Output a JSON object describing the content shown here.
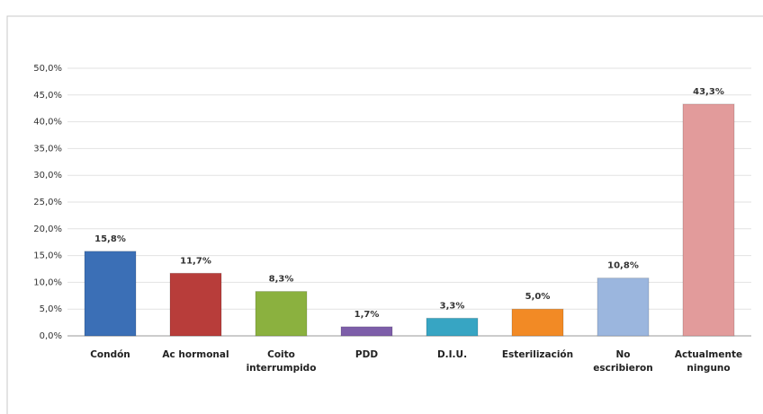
{
  "chart_data": {
    "type": "bar",
    "categories": [
      "Condón",
      "Ac hormonal",
      "Coito interrumpido",
      "PDD",
      "D.I.U.",
      "Esterilización",
      "No escribieron",
      "Actualmente ninguno"
    ],
    "values": [
      15.8,
      11.7,
      8.3,
      1.7,
      3.3,
      5.0,
      10.8,
      43.3
    ],
    "value_labels": [
      "15,8%",
      "11,7%",
      "8,3%",
      "1,7%",
      "3,3%",
      "5,0%",
      "10,8%",
      "43,3%"
    ],
    "colors": [
      "#3b6fb6",
      "#b83d3a",
      "#8bb13f",
      "#7d5ea9",
      "#37a5c3",
      "#f28a25",
      "#9bb6de",
      "#e29b9b"
    ],
    "ylim": [
      0,
      50
    ],
    "yticks": [
      {
        "value": 0,
        "label": "0,0%"
      },
      {
        "value": 5,
        "label": "5,0%"
      },
      {
        "value": 10,
        "label": "10,0%"
      },
      {
        "value": 15,
        "label": "15,0%"
      },
      {
        "value": 20,
        "label": "20,0%"
      },
      {
        "value": 25,
        "label": "25,0%"
      },
      {
        "value": 30,
        "label": "30,0%"
      },
      {
        "value": 35,
        "label": "35,0%"
      },
      {
        "value": 40,
        "label": "40,0%"
      },
      {
        "value": 45,
        "label": "45,0%"
      },
      {
        "value": 50,
        "label": "50,0%"
      }
    ],
    "grid": true
  }
}
